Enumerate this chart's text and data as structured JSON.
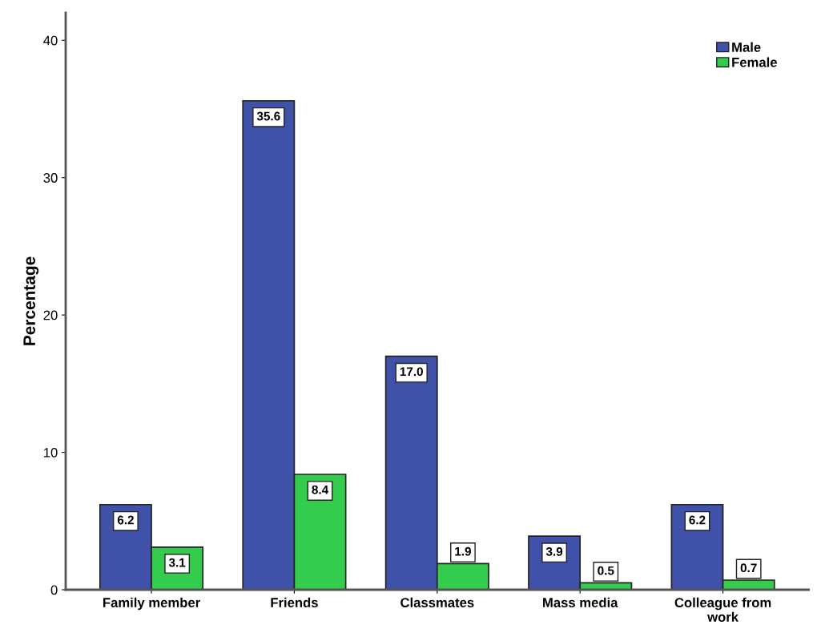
{
  "chart_data": {
    "type": "bar",
    "ylabel": "Percentage",
    "categories": [
      "Family member",
      "Friends",
      "Classmates",
      "Mass media",
      "Colleague from work"
    ],
    "series": [
      {
        "name": "Male",
        "color": "#3f51a8",
        "values": [
          6.2,
          35.6,
          17.0,
          3.9,
          6.2
        ],
        "value_labels": [
          "6.2",
          "35.6",
          "17.0",
          "3.9",
          "6.2"
        ]
      },
      {
        "name": "Female",
        "color": "#33cc4c",
        "values": [
          3.1,
          8.4,
          1.9,
          0.5,
          0.7
        ],
        "value_labels": [
          "3.1",
          "8.4",
          "1.9",
          "0.5",
          "0.7"
        ]
      }
    ],
    "ylim": [
      0,
      42
    ],
    "yticks": [
      0,
      10,
      20,
      30,
      40
    ],
    "grid": false,
    "legend": "top right"
  }
}
